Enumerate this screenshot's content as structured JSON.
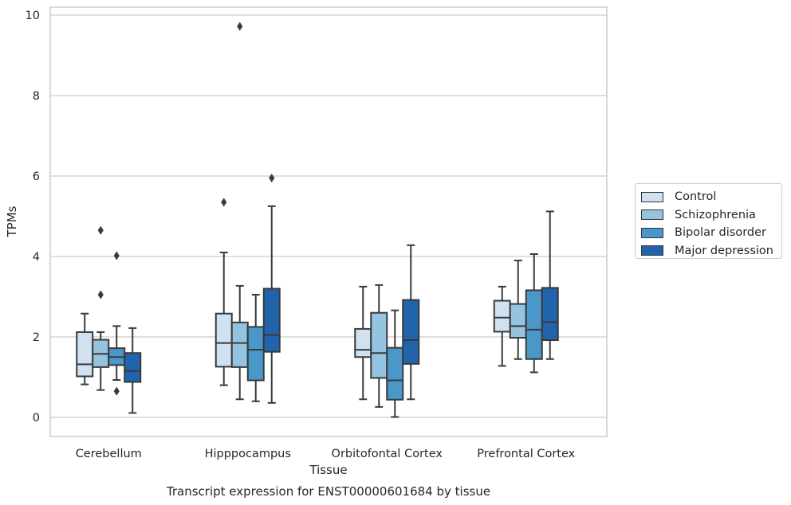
{
  "chart_data": {
    "type": "box",
    "title": "Transcript expression for ENST00000601684 by tissue",
    "xlabel": "Tissue",
    "ylabel": "TPMs",
    "ylim": [
      -0.45,
      10.2
    ],
    "yticks": [
      "0",
      "2",
      "4",
      "6",
      "8",
      "10"
    ],
    "ytick_values": [
      0,
      2,
      4,
      6,
      8,
      10
    ],
    "categories": [
      "Cerebellum",
      "Hipppocampus",
      "Orbitofontal Cortex",
      "Prefrontal Cortex"
    ],
    "grid": true,
    "legend_position": "right",
    "series": [
      {
        "name": "Control",
        "color": "#d0e1f2",
        "boxes": [
          {
            "whisker_low": 0.82,
            "q1": 1.02,
            "median": 1.32,
            "q3": 2.12,
            "whisker_high": 2.58,
            "outliers": []
          },
          {
            "whisker_low": 0.8,
            "q1": 1.26,
            "median": 1.85,
            "q3": 2.58,
            "whisker_high": 4.1,
            "outliers": [
              5.35
            ]
          },
          {
            "whisker_low": 0.45,
            "q1": 1.5,
            "median": 1.68,
            "q3": 2.2,
            "whisker_high": 3.25,
            "outliers": []
          },
          {
            "whisker_low": 1.28,
            "q1": 2.13,
            "median": 2.48,
            "q3": 2.9,
            "whisker_high": 3.25,
            "outliers": []
          }
        ]
      },
      {
        "name": "Schizophrenia",
        "color": "#94c4df",
        "boxes": [
          {
            "whisker_low": 0.68,
            "q1": 1.25,
            "median": 1.58,
            "q3": 1.93,
            "whisker_high": 2.12,
            "outliers": [
              3.05,
              4.65
            ]
          },
          {
            "whisker_low": 0.45,
            "q1": 1.25,
            "median": 1.85,
            "q3": 2.36,
            "whisker_high": 3.27,
            "outliers": [
              9.72
            ]
          },
          {
            "whisker_low": 0.26,
            "q1": 0.98,
            "median": 1.6,
            "q3": 2.6,
            "whisker_high": 3.29,
            "outliers": []
          },
          {
            "whisker_low": 1.45,
            "q1": 1.98,
            "median": 2.27,
            "q3": 2.82,
            "whisker_high": 3.9,
            "outliers": []
          }
        ]
      },
      {
        "name": "Bipolar disorder",
        "color": "#4a98c9",
        "boxes": [
          {
            "whisker_low": 0.93,
            "q1": 1.3,
            "median": 1.5,
            "q3": 1.72,
            "whisker_high": 2.27,
            "outliers": [
              0.65,
              4.02
            ]
          },
          {
            "whisker_low": 0.4,
            "q1": 0.92,
            "median": 1.68,
            "q3": 2.25,
            "whisker_high": 3.05,
            "outliers": []
          },
          {
            "whisker_low": 0.01,
            "q1": 0.44,
            "median": 0.92,
            "q3": 1.73,
            "whisker_high": 2.66,
            "outliers": []
          },
          {
            "whisker_low": 1.12,
            "q1": 1.45,
            "median": 2.18,
            "q3": 3.16,
            "whisker_high": 4.06,
            "outliers": []
          }
        ]
      },
      {
        "name": "Major depression",
        "color": "#2164ab",
        "boxes": [
          {
            "whisker_low": 0.11,
            "q1": 0.88,
            "median": 1.15,
            "q3": 1.6,
            "whisker_high": 2.22,
            "outliers": []
          },
          {
            "whisker_low": 0.36,
            "q1": 1.63,
            "median": 2.05,
            "q3": 3.2,
            "whisker_high": 5.25,
            "outliers": [
              5.95
            ]
          },
          {
            "whisker_low": 0.45,
            "q1": 1.33,
            "median": 1.92,
            "q3": 2.92,
            "whisker_high": 4.28,
            "outliers": []
          },
          {
            "whisker_low": 1.45,
            "q1": 1.92,
            "median": 2.37,
            "q3": 3.22,
            "whisker_high": 5.12,
            "outliers": []
          }
        ]
      }
    ]
  }
}
